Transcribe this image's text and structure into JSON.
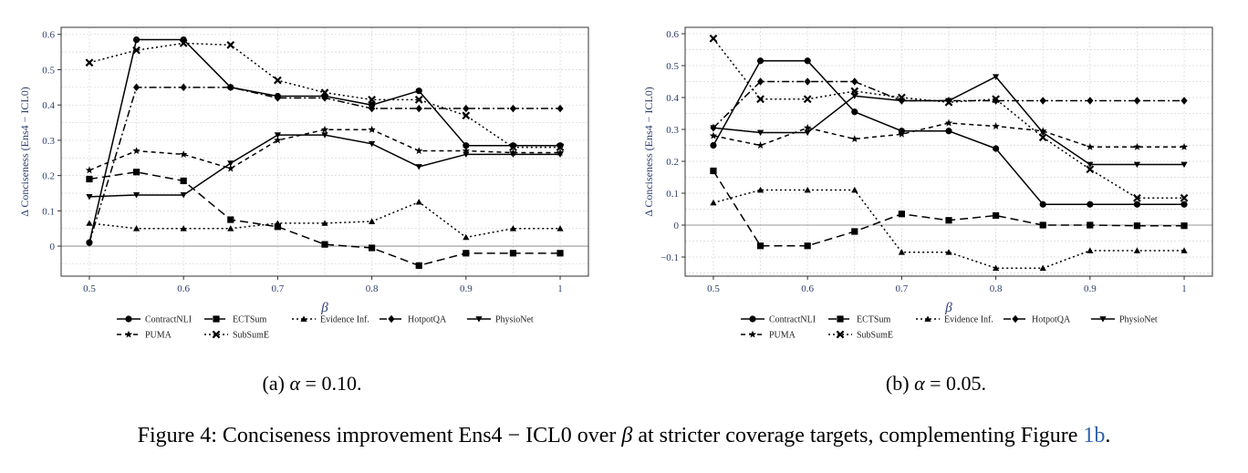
{
  "figure": {
    "caption_prefix": "Figure 4: Conciseness improvement Ens4 − ICL0 over ",
    "caption_beta": "β",
    "caption_middle": " at stricter coverage targets, complementing Figure ",
    "caption_ref": "1b",
    "caption_end": "."
  },
  "subfigures": [
    {
      "label": "(a) ",
      "alpha_symbol": "α",
      "alpha_value": " = 0.10."
    },
    {
      "label": "(b) ",
      "alpha_symbol": "α",
      "alpha_value": " = 0.05."
    }
  ],
  "chart_data": [
    {
      "type": "line",
      "title": "",
      "xlabel": "β",
      "ylabel": "Δ Conciseness (Ens4 − ICL0)",
      "x": [
        0.5,
        0.55,
        0.6,
        0.65,
        0.7,
        0.75,
        0.8,
        0.85,
        0.9,
        0.95,
        1.0
      ],
      "xticks": [
        "0.5",
        "0.6",
        "0.7",
        "0.8",
        "0.9",
        "1"
      ],
      "xtick_values": [
        0.5,
        0.6,
        0.7,
        0.8,
        0.9,
        1.0
      ],
      "yticks": [
        "0",
        "0.1",
        "0.2",
        "0.3",
        "0.4",
        "0.5",
        "0.6"
      ],
      "ytick_values": [
        0,
        0.1,
        0.2,
        0.3,
        0.4,
        0.5,
        0.6
      ],
      "xlim": [
        0.47,
        1.03
      ],
      "ylim": [
        -0.085,
        0.62
      ],
      "grid": true,
      "legend": "bottom",
      "series": [
        {
          "name": "ContractNLI",
          "marker": "circle",
          "dash": "solid",
          "values": [
            0.01,
            0.585,
            0.585,
            0.45,
            0.425,
            0.425,
            0.4,
            0.44,
            0.285,
            0.285,
            0.285
          ]
        },
        {
          "name": "ECTSum",
          "marker": "square",
          "dash": "longdash",
          "values": [
            0.19,
            0.21,
            0.185,
            0.075,
            0.055,
            0.005,
            -0.005,
            -0.055,
            -0.02,
            -0.02,
            -0.02
          ]
        },
        {
          "name": "Evidence Inf.",
          "marker": "triangle",
          "dash": "dotted",
          "values": [
            0.065,
            0.05,
            0.05,
            0.05,
            0.065,
            0.065,
            0.07,
            0.125,
            0.025,
            0.05,
            0.05
          ]
        },
        {
          "name": "HotpotQA",
          "marker": "diamond",
          "dash": "dashdot",
          "values": [
            0.01,
            0.45,
            0.45,
            0.45,
            0.42,
            0.42,
            0.39,
            0.39,
            0.39,
            0.39,
            0.39
          ]
        },
        {
          "name": "PhysioNet",
          "marker": "triangle-down",
          "dash": "solid",
          "values": [
            0.14,
            0.145,
            0.145,
            0.235,
            0.315,
            0.315,
            0.29,
            0.225,
            0.26,
            0.26,
            0.26
          ]
        },
        {
          "name": "PUMA",
          "marker": "star",
          "dash": "dashed",
          "values": [
            0.215,
            0.27,
            0.26,
            0.22,
            0.3,
            0.33,
            0.33,
            0.27,
            0.27,
            0.265,
            0.265
          ]
        },
        {
          "name": "SubSumE",
          "marker": "cross",
          "dash": "dotted",
          "values": [
            0.52,
            0.555,
            0.575,
            0.57,
            0.47,
            0.435,
            0.415,
            0.415,
            0.37,
            0.28,
            0.28
          ]
        }
      ]
    },
    {
      "type": "line",
      "title": "",
      "xlabel": "β",
      "ylabel": "Δ Conciseness (Ens4 − ICL0)",
      "x": [
        0.5,
        0.55,
        0.6,
        0.65,
        0.7,
        0.75,
        0.8,
        0.85,
        0.9,
        0.95,
        1.0
      ],
      "xticks": [
        "0.5",
        "0.6",
        "0.7",
        "0.8",
        "0.9",
        "1"
      ],
      "xtick_values": [
        0.5,
        0.6,
        0.7,
        0.8,
        0.9,
        1.0
      ],
      "yticks": [
        "−0.1",
        "0",
        "0.1",
        "0.2",
        "0.3",
        "0.4",
        "0.5",
        "0.6"
      ],
      "ytick_values": [
        -0.1,
        0,
        0.1,
        0.2,
        0.3,
        0.4,
        0.5,
        0.6
      ],
      "xlim": [
        0.47,
        1.03
      ],
      "ylim": [
        -0.16,
        0.62
      ],
      "grid": true,
      "legend": "bottom",
      "series": [
        {
          "name": "ContractNLI",
          "marker": "circle",
          "dash": "solid",
          "values": [
            0.25,
            0.515,
            0.515,
            0.355,
            0.295,
            0.295,
            0.24,
            0.065,
            0.065,
            0.065,
            0.065
          ]
        },
        {
          "name": "ECTSum",
          "marker": "square",
          "dash": "longdash",
          "values": [
            0.17,
            -0.065,
            -0.065,
            -0.02,
            0.035,
            0.015,
            0.03,
            0.0,
            0.0,
            -0.002,
            -0.002
          ]
        },
        {
          "name": "Evidence Inf.",
          "marker": "triangle",
          "dash": "dotted",
          "values": [
            0.07,
            0.11,
            0.11,
            0.11,
            -0.085,
            -0.085,
            -0.135,
            -0.135,
            -0.08,
            -0.08,
            -0.08
          ]
        },
        {
          "name": "HotpotQA",
          "marker": "diamond",
          "dash": "dashdot",
          "values": [
            0.305,
            0.45,
            0.45,
            0.45,
            0.39,
            0.39,
            0.39,
            0.39,
            0.39,
            0.39,
            0.39
          ]
        },
        {
          "name": "PhysioNet",
          "marker": "triangle-down",
          "dash": "solid",
          "values": [
            0.305,
            0.29,
            0.29,
            0.405,
            0.39,
            0.39,
            0.465,
            0.29,
            0.19,
            0.19,
            0.19
          ]
        },
        {
          "name": "PUMA",
          "marker": "star",
          "dash": "dashed",
          "values": [
            0.28,
            0.25,
            0.305,
            0.27,
            0.285,
            0.32,
            0.31,
            0.295,
            0.245,
            0.245,
            0.245
          ]
        },
        {
          "name": "SubSumE",
          "marker": "cross",
          "dash": "dotted",
          "values": [
            0.585,
            0.395,
            0.395,
            0.42,
            0.4,
            0.385,
            0.395,
            0.275,
            0.175,
            0.085,
            0.085
          ]
        }
      ]
    }
  ]
}
